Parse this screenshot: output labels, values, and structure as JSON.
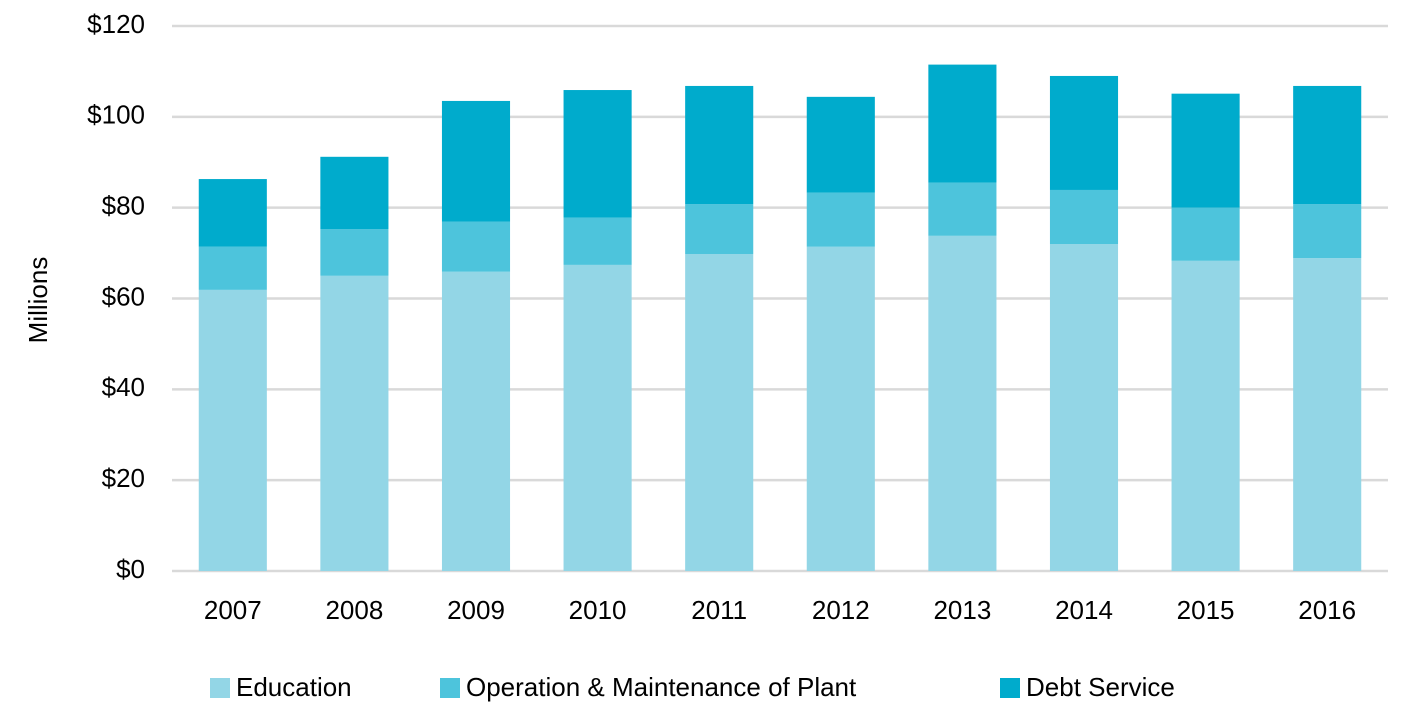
{
  "chart_data": {
    "type": "stacked_bar",
    "y_label": "Millions",
    "categories": [
      "2007",
      "2008",
      "2009",
      "2010",
      "2011",
      "2012",
      "2013",
      "2014",
      "2015",
      "2016"
    ],
    "series": [
      {
        "name": "Education",
        "color": "#93d6e6",
        "values": [
          61.9,
          65.0,
          65.9,
          67.4,
          69.8,
          71.4,
          73.8,
          72.0,
          68.3,
          68.9
        ]
      },
      {
        "name": "Operation & Maintenance of Plant",
        "color": "#4dc4dc",
        "values": [
          9.5,
          10.3,
          11.0,
          10.4,
          11.0,
          11.9,
          11.7,
          11.9,
          11.7,
          11.9
        ]
      },
      {
        "name": "Debt Service",
        "color": "#00abcc",
        "values": [
          14.9,
          15.9,
          26.6,
          28.1,
          26.0,
          21.1,
          26.0,
          25.1,
          25.1,
          26.0
        ]
      }
    ],
    "ylim": [
      0,
      120
    ],
    "yticks": [
      {
        "value": 0,
        "label": "$0"
      },
      {
        "value": 20,
        "label": "$20"
      },
      {
        "value": 40,
        "label": "$40"
      },
      {
        "value": 60,
        "label": "$60"
      },
      {
        "value": 80,
        "label": "$80"
      },
      {
        "value": 100,
        "label": "$100"
      },
      {
        "value": 120,
        "label": "$120"
      }
    ],
    "grid": true,
    "legend": "bottom"
  }
}
